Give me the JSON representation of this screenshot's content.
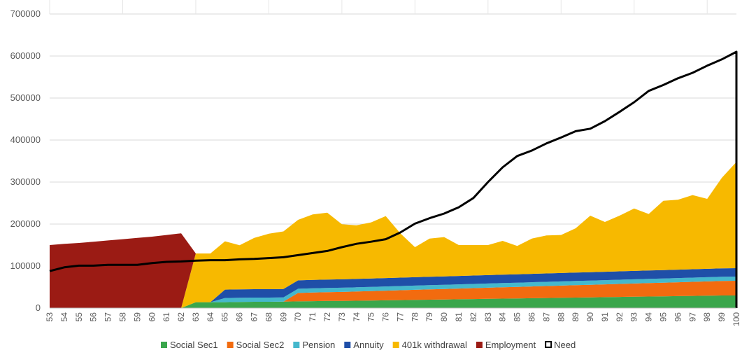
{
  "chart_data": {
    "type": "area",
    "title": "",
    "xlabel": "",
    "ylabel": "",
    "ylim": [
      0,
      700000
    ],
    "yticks": [
      0,
      100000,
      200000,
      300000,
      400000,
      500000,
      600000,
      700000
    ],
    "ytick_labels": [
      "0",
      "100000",
      "200000",
      "300000",
      "400000",
      "500000",
      "600000",
      "700000"
    ],
    "x": [
      53,
      54,
      55,
      56,
      57,
      58,
      59,
      60,
      61,
      62,
      63,
      64,
      65,
      66,
      67,
      68,
      69,
      70,
      71,
      72,
      73,
      74,
      75,
      76,
      77,
      78,
      79,
      80,
      81,
      82,
      83,
      84,
      85,
      86,
      87,
      88,
      89,
      90,
      91,
      92,
      93,
      94,
      95,
      96,
      97,
      98,
      99,
      100
    ],
    "xtick_labels": [
      "53",
      "54",
      "55",
      "56",
      "57",
      "58",
      "59",
      "60",
      "61",
      "62",
      "63",
      "64",
      "65",
      "66",
      "67",
      "68",
      "69",
      "70",
      "71",
      "72",
      "73",
      "74",
      "75",
      "76",
      "77",
      "78",
      "79",
      "80",
      "81",
      "82",
      "83",
      "84",
      "85",
      "86",
      "87",
      "88",
      "89",
      "90",
      "91",
      "92",
      "93",
      "94",
      "95",
      "96",
      "97",
      "98",
      "99",
      "100"
    ],
    "grid": true,
    "legend_position": "bottom",
    "stacked": true,
    "series": [
      {
        "name": "Social Sec1",
        "kind": "area",
        "color": "#3aa64c",
        "values": [
          0,
          0,
          0,
          0,
          0,
          0,
          0,
          0,
          0,
          0,
          14000,
          14000,
          14000,
          14500,
          15000,
          15000,
          15500,
          16000,
          16500,
          17000,
          17000,
          17500,
          18000,
          18500,
          19000,
          19500,
          20000,
          20500,
          21000,
          21500,
          22000,
          22500,
          23000,
          23500,
          24000,
          24500,
          25000,
          25500,
          26000,
          26500,
          27000,
          27500,
          28000,
          28500,
          29000,
          29500,
          30000,
          30000
        ]
      },
      {
        "name": "Social Sec2",
        "kind": "area",
        "color": "#f26b0f",
        "values": [
          0,
          0,
          0,
          0,
          0,
          0,
          0,
          0,
          0,
          0,
          0,
          0,
          0,
          0,
          0,
          0,
          0,
          20000,
          20500,
          21000,
          21500,
          22000,
          22500,
          23000,
          23500,
          24000,
          24500,
          25000,
          25500,
          26000,
          26500,
          27000,
          27500,
          28000,
          28500,
          29000,
          29500,
          30000,
          30500,
          31000,
          31500,
          32000,
          32500,
          33000,
          33500,
          34000,
          34500,
          35000
        ]
      },
      {
        "name": "Pension",
        "kind": "area",
        "color": "#45b8cc",
        "values": [
          0,
          0,
          0,
          0,
          0,
          0,
          0,
          0,
          0,
          0,
          0,
          0,
          10000,
          10000,
          10000,
          10000,
          10000,
          10000,
          10000,
          10000,
          10000,
          10000,
          10000,
          10000,
          10000,
          10000,
          10000,
          10000,
          10000,
          10000,
          10000,
          10000,
          10000,
          10000,
          10000,
          10000,
          10000,
          10000,
          10000,
          10000,
          10000,
          10000,
          10000,
          10000,
          10000,
          10000,
          10000,
          10000
        ]
      },
      {
        "name": "Annuity",
        "kind": "area",
        "color": "#1f4fa8",
        "values": [
          0,
          0,
          0,
          0,
          0,
          0,
          0,
          0,
          0,
          0,
          0,
          0,
          20000,
          20000,
          20000,
          20000,
          20000,
          20000,
          20000,
          20000,
          20000,
          20000,
          20000,
          20000,
          20000,
          20000,
          20000,
          20000,
          20000,
          20000,
          20000,
          20000,
          20000,
          20000,
          20000,
          20000,
          20000,
          20000,
          20000,
          20000,
          20000,
          20000,
          20000,
          20000,
          20000,
          20000,
          20000,
          20000
        ]
      },
      {
        "name": "401k withdrawal",
        "kind": "area",
        "color": "#f7b900",
        "values": [
          0,
          0,
          0,
          0,
          0,
          0,
          0,
          0,
          0,
          0,
          116000,
          116000,
          115000,
          105000,
          122000,
          132000,
          137000,
          144000,
          156000,
          159000,
          131000,
          127500,
          133500,
          147500,
          105500,
          71500,
          91000,
          93500,
          73500,
          72500,
          71500,
          80500,
          67500,
          84000,
          90500,
          90500,
          105500,
          134500,
          118500,
          132500,
          148500,
          134500,
          165000,
          166500,
          176500,
          166500,
          215500,
          253000
        ]
      },
      {
        "name": "Employment",
        "kind": "area",
        "color": "#9b1b14",
        "values": [
          150000,
          153000,
          155000,
          158000,
          161000,
          164000,
          167000,
          170000,
          174000,
          178000,
          0,
          0,
          0,
          0,
          0,
          0,
          0,
          0,
          0,
          0,
          0,
          0,
          0,
          0,
          0,
          0,
          0,
          0,
          0,
          0,
          0,
          0,
          0,
          0,
          0,
          0,
          0,
          0,
          0,
          0,
          0,
          0,
          0,
          0,
          0,
          0,
          0,
          0
        ]
      },
      {
        "name": "Need",
        "kind": "line",
        "color": "#000000",
        "values": [
          88000,
          97000,
          101000,
          101000,
          103000,
          103000,
          103000,
          107000,
          110000,
          111000,
          113000,
          114000,
          114000,
          116000,
          117000,
          119000,
          121000,
          126000,
          131000,
          136000,
          145000,
          153000,
          158000,
          164000,
          180000,
          201000,
          214000,
          225000,
          240000,
          262000,
          300000,
          335000,
          362000,
          375000,
          392000,
          406000,
          421000,
          427000,
          445000,
          467000,
          490000,
          517000,
          531000,
          547000,
          560000,
          577000,
          592000,
          610000
        ]
      }
    ]
  }
}
